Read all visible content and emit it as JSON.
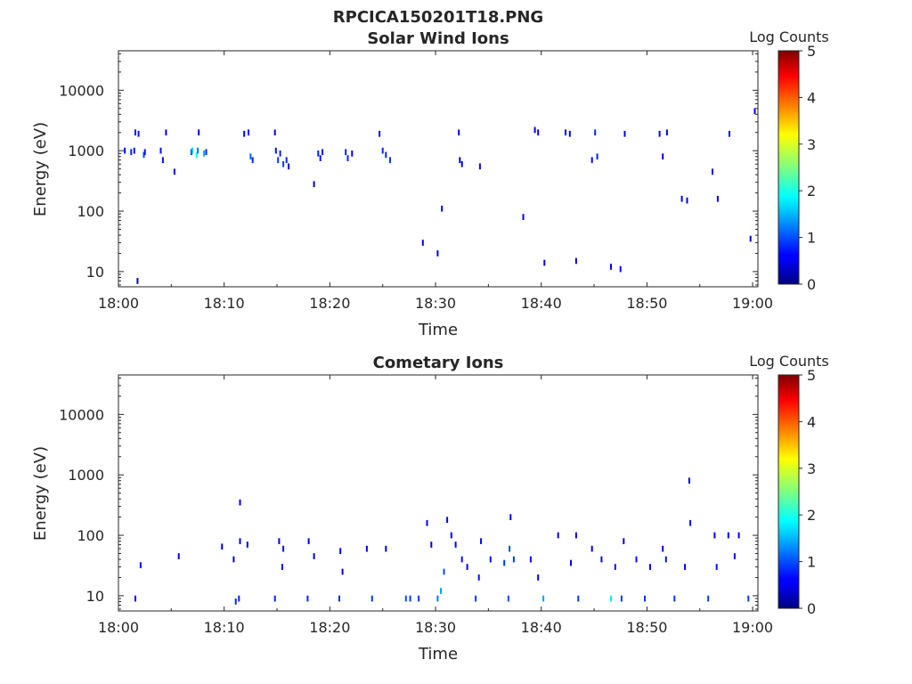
{
  "figure": {
    "title": "RPCICA150201T18.PNG"
  },
  "chart_data": [
    {
      "type": "heatmap",
      "title": "Solar Wind Ions",
      "xlabel": "Time",
      "ylabel": "Energy (eV)",
      "x_tick_labels": [
        "18:00",
        "18:10",
        "18:20",
        "18:30",
        "18:40",
        "18:50",
        "19:00"
      ],
      "x_range_minutes": [
        0,
        60.5
      ],
      "y_tick_values": [
        10,
        100,
        1000,
        10000
      ],
      "y_tick_labels": [
        "10",
        "100",
        "1000",
        "10000"
      ],
      "y_range_ev": [
        5.6,
        45000
      ],
      "y_scale": "log",
      "colorbar": {
        "label": "Log Counts",
        "range": [
          0,
          5
        ],
        "tick_labels": [
          "0",
          "1",
          "2",
          "3",
          "4",
          "5"
        ],
        "colormap": "jet"
      },
      "cells": [
        [
          1.8,
          7,
          0.3
        ],
        [
          0.6,
          1000,
          0.7
        ],
        [
          1.2,
          950,
          0.8
        ],
        [
          1.5,
          1000,
          0.7
        ],
        [
          1.6,
          2000,
          0.6
        ],
        [
          1.9,
          1900,
          0.7
        ],
        [
          2.4,
          850,
          1.0
        ],
        [
          2.5,
          950,
          0.7
        ],
        [
          4.0,
          1000,
          0.7
        ],
        [
          4.2,
          700,
          0.7
        ],
        [
          4.5,
          2000,
          0.6
        ],
        [
          5.3,
          450,
          0.5
        ],
        [
          6.9,
          950,
          0.9
        ],
        [
          7.0,
          1000,
          1.6
        ],
        [
          7.4,
          850,
          1.9
        ],
        [
          7.5,
          1000,
          1.2
        ],
        [
          7.6,
          2000,
          0.6
        ],
        [
          8.1,
          900,
          1.4
        ],
        [
          8.3,
          950,
          0.8
        ],
        [
          11.9,
          1900,
          0.6
        ],
        [
          12.3,
          2000,
          0.6
        ],
        [
          12.5,
          800,
          1.1
        ],
        [
          12.7,
          700,
          0.8
        ],
        [
          14.8,
          2000,
          0.6
        ],
        [
          14.9,
          1000,
          0.7
        ],
        [
          15.1,
          700,
          0.9
        ],
        [
          15.3,
          900,
          0.8
        ],
        [
          15.6,
          600,
          0.9
        ],
        [
          15.9,
          700,
          0.8
        ],
        [
          16.1,
          550,
          0.6
        ],
        [
          18.5,
          280,
          0.4
        ],
        [
          18.9,
          900,
          0.8
        ],
        [
          19.1,
          750,
          0.7
        ],
        [
          19.3,
          950,
          0.6
        ],
        [
          21.5,
          950,
          0.8
        ],
        [
          21.7,
          750,
          0.8
        ],
        [
          22.1,
          900,
          0.6
        ],
        [
          24.7,
          1900,
          0.6
        ],
        [
          25.0,
          1000,
          0.8
        ],
        [
          25.3,
          850,
          0.8
        ],
        [
          25.7,
          700,
          0.9
        ],
        [
          28.8,
          30,
          0.5
        ],
        [
          30.2,
          20,
          0.5
        ],
        [
          30.6,
          110,
          0.5
        ],
        [
          32.2,
          2000,
          0.6
        ],
        [
          32.3,
          700,
          0.6
        ],
        [
          32.5,
          600,
          0.5
        ],
        [
          34.2,
          550,
          0.5
        ],
        [
          38.3,
          80,
          0.6
        ],
        [
          39.4,
          2200,
          0.6
        ],
        [
          39.7,
          2000,
          0.5
        ],
        [
          40.3,
          14,
          0.5
        ],
        [
          42.3,
          2000,
          0.6
        ],
        [
          42.7,
          1900,
          0.6
        ],
        [
          43.3,
          15,
          0.5
        ],
        [
          44.8,
          700,
          0.7
        ],
        [
          45.1,
          2000,
          0.8
        ],
        [
          45.3,
          800,
          0.8
        ],
        [
          46.6,
          12,
          0.6
        ],
        [
          47.5,
          11,
          0.6
        ],
        [
          47.9,
          1900,
          0.6
        ],
        [
          51.2,
          1900,
          0.6
        ],
        [
          51.5,
          800,
          0.5
        ],
        [
          51.9,
          2000,
          0.6
        ],
        [
          53.3,
          160,
          0.5
        ],
        [
          53.8,
          150,
          0.5
        ],
        [
          56.2,
          450,
          0.5
        ],
        [
          56.7,
          160,
          0.5
        ],
        [
          57.8,
          1900,
          0.6
        ],
        [
          59.8,
          35,
          0.5
        ],
        [
          60.2,
          4500,
          0.5
        ]
      ]
    },
    {
      "type": "heatmap",
      "title": "Cometary Ions",
      "xlabel": "Time",
      "ylabel": "Energy (eV)",
      "x_tick_labels": [
        "18:00",
        "18:10",
        "18:20",
        "18:30",
        "18:40",
        "18:50",
        "19:00"
      ],
      "x_range_minutes": [
        0,
        60.5
      ],
      "y_tick_values": [
        10,
        100,
        1000,
        10000
      ],
      "y_tick_labels": [
        "10",
        "100",
        "1000",
        "10000"
      ],
      "y_range_ev": [
        5.6,
        45000
      ],
      "y_scale": "log",
      "colorbar": {
        "label": "Log Counts",
        "range": [
          0,
          5
        ],
        "tick_labels": [
          "0",
          "1",
          "2",
          "3",
          "4",
          "5"
        ],
        "colormap": "jet"
      },
      "cells": [
        [
          1.6,
          9,
          0.6
        ],
        [
          2.1,
          32,
          0.5
        ],
        [
          5.7,
          45,
          0.5
        ],
        [
          9.8,
          65,
          0.4
        ],
        [
          10.9,
          40,
          0.5
        ],
        [
          11.1,
          8,
          0.8
        ],
        [
          11.4,
          9,
          0.8
        ],
        [
          11.5,
          350,
          0.5
        ],
        [
          11.5,
          80,
          0.6
        ],
        [
          12.2,
          70,
          0.4
        ],
        [
          14.8,
          9,
          0.8
        ],
        [
          15.2,
          80,
          0.5
        ],
        [
          15.6,
          60,
          0.5
        ],
        [
          15.5,
          30,
          0.4
        ],
        [
          17.9,
          9,
          0.8
        ],
        [
          18.0,
          80,
          0.5
        ],
        [
          18.5,
          45,
          0.5
        ],
        [
          20.9,
          9,
          0.8
        ],
        [
          21.0,
          55,
          0.5
        ],
        [
          21.2,
          25,
          0.4
        ],
        [
          24.0,
          9,
          0.9
        ],
        [
          23.5,
          60,
          0.5
        ],
        [
          25.3,
          60,
          0.5
        ],
        [
          27.2,
          9,
          1.0
        ],
        [
          27.6,
          9,
          0.9
        ],
        [
          28.4,
          9,
          0.9
        ],
        [
          29.2,
          160,
          0.5
        ],
        [
          29.6,
          70,
          0.5
        ],
        [
          30.2,
          9,
          1.2
        ],
        [
          30.5,
          12,
          1.4
        ],
        [
          30.8,
          25,
          1.0
        ],
        [
          31.1,
          180,
          0.5
        ],
        [
          31.5,
          100,
          0.5
        ],
        [
          31.9,
          70,
          0.6
        ],
        [
          32.5,
          40,
          0.7
        ],
        [
          33.0,
          30,
          0.6
        ],
        [
          33.8,
          9,
          0.9
        ],
        [
          34.1,
          20,
          0.7
        ],
        [
          34.3,
          80,
          0.6
        ],
        [
          35.2,
          40,
          0.7
        ],
        [
          36.5,
          35,
          0.9
        ],
        [
          36.9,
          9,
          1.0
        ],
        [
          37.0,
          60,
          1.0
        ],
        [
          37.4,
          40,
          0.9
        ],
        [
          37.1,
          200,
          0.5
        ],
        [
          39.0,
          40,
          0.6
        ],
        [
          39.7,
          20,
          0.6
        ],
        [
          40.2,
          9,
          1.4
        ],
        [
          41.6,
          100,
          0.4
        ],
        [
          42.8,
          35,
          0.6
        ],
        [
          43.5,
          9,
          0.9
        ],
        [
          43.3,
          100,
          0.5
        ],
        [
          44.8,
          60,
          0.6
        ],
        [
          45.7,
          40,
          0.6
        ],
        [
          46.6,
          9,
          1.8
        ],
        [
          47.0,
          30,
          0.7
        ],
        [
          47.6,
          9,
          0.9
        ],
        [
          47.8,
          80,
          0.5
        ],
        [
          49.0,
          40,
          0.7
        ],
        [
          49.8,
          9,
          0.9
        ],
        [
          50.3,
          30,
          0.6
        ],
        [
          51.5,
          60,
          0.6
        ],
        [
          51.8,
          40,
          0.7
        ],
        [
          52.6,
          9,
          0.9
        ],
        [
          53.6,
          30,
          0.5
        ],
        [
          54.1,
          160,
          0.6
        ],
        [
          54.0,
          800,
          0.5
        ],
        [
          55.8,
          9,
          0.9
        ],
        [
          56.4,
          100,
          0.6
        ],
        [
          56.6,
          30,
          0.7
        ],
        [
          57.7,
          100,
          0.5
        ],
        [
          58.3,
          45,
          0.6
        ],
        [
          58.7,
          100,
          0.5
        ],
        [
          59.6,
          9,
          0.9
        ]
      ]
    }
  ]
}
